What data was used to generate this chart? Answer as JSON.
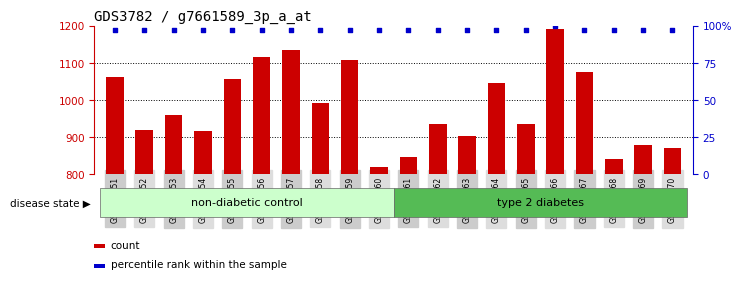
{
  "title": "GDS3782 / g7661589_3p_a_at",
  "samples": [
    "GSM524151",
    "GSM524152",
    "GSM524153",
    "GSM524154",
    "GSM524155",
    "GSM524156",
    "GSM524157",
    "GSM524158",
    "GSM524159",
    "GSM524160",
    "GSM524161",
    "GSM524162",
    "GSM524163",
    "GSM524164",
    "GSM524165",
    "GSM524166",
    "GSM524167",
    "GSM524168",
    "GSM524169",
    "GSM524170"
  ],
  "counts": [
    1062,
    920,
    960,
    917,
    1057,
    1115,
    1135,
    993,
    1108,
    820,
    847,
    935,
    903,
    1047,
    935,
    1190,
    1075,
    840,
    878,
    870
  ],
  "percentile_ranks": [
    97,
    97,
    97,
    97,
    97,
    97,
    97,
    97,
    97,
    97,
    97,
    97,
    97,
    97,
    97,
    100,
    97,
    97,
    97,
    97
  ],
  "group_labels": [
    "non-diabetic control",
    "type 2 diabetes"
  ],
  "group_split": 10,
  "group_colors": [
    "#ccffcc",
    "#55bb55"
  ],
  "bar_color": "#cc0000",
  "dot_color": "#0000cc",
  "ylim": [
    800,
    1200
  ],
  "yticks_left": [
    800,
    900,
    1000,
    1100,
    1200
  ],
  "yticks_right": [
    0,
    25,
    50,
    75,
    100
  ],
  "legend_count_label": "count",
  "legend_pct_label": "percentile rank within the sample",
  "disease_state_label": "disease state",
  "background_color": "#ffffff",
  "title_fontsize": 10,
  "axis_fontsize": 7.5,
  "label_fontsize": 7.5,
  "tick_fontsize": 5.5,
  "group_label_fontsize": 8
}
